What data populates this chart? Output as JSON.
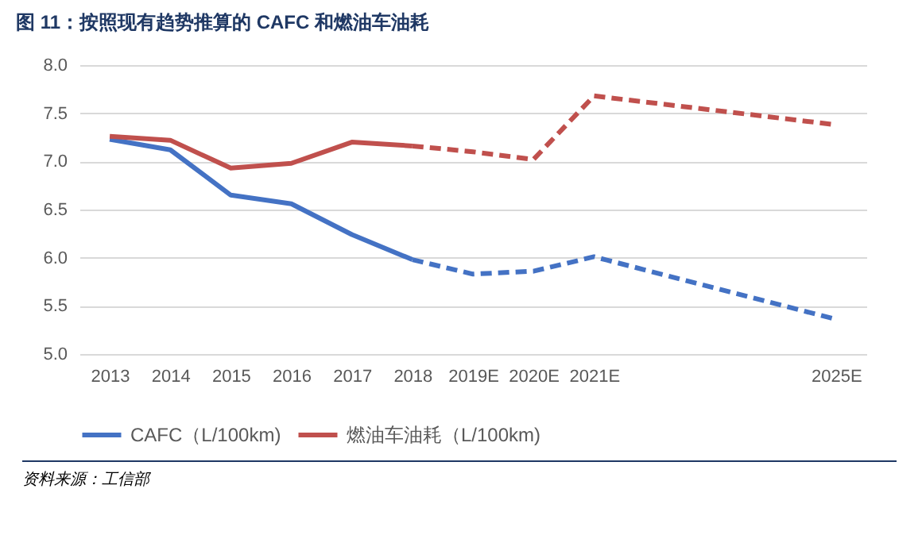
{
  "chart_data": {
    "type": "line",
    "title": "图 11：按照现有趋势推算的 CAFC 和燃油车油耗",
    "series": [
      {
        "name": "CAFC（L/100km)",
        "color": "#4472c4",
        "x": [
          2013,
          2014,
          2015,
          2016,
          2017,
          2018
        ],
        "values": [
          7.23,
          7.12,
          6.65,
          6.56,
          6.24,
          5.98
        ]
      },
      {
        "name": "燃油车油耗（L/100km)",
        "color": "#c0504d",
        "x": [
          2013,
          2014,
          2015,
          2016,
          2017,
          2018
        ],
        "values": [
          7.26,
          7.22,
          6.93,
          6.98,
          7.2,
          7.16
        ]
      },
      {
        "color": "#4472c4",
        "line_style": "dashed",
        "x": [
          2018,
          2019,
          2020,
          2021,
          2025
        ],
        "values": [
          5.98,
          5.83,
          5.86,
          6.01,
          5.36
        ]
      },
      {
        "color": "#c0504d",
        "line_style": "dashed",
        "x": [
          2018,
          2019,
          2020,
          2021,
          2025
        ],
        "values": [
          7.16,
          7.1,
          7.02,
          7.68,
          7.38
        ]
      }
    ],
    "xlim": [
      2012.5,
      2025.5
    ],
    "xticks": [
      2013,
      2014,
      2015,
      2016,
      2017,
      2018,
      {
        "value": 2019,
        "label": "2019E"
      },
      {
        "value": 2020,
        "label": "2020E"
      },
      {
        "value": 2021,
        "label": "2021E"
      },
      {
        "value": 2025,
        "label": "2025E"
      }
    ],
    "ylim": [
      5,
      8
    ],
    "yticks": [
      {
        "value": 5,
        "label": "5.0"
      },
      5.5,
      {
        "value": 6,
        "label": "6.0"
      },
      6.5,
      {
        "value": 7,
        "label": "7.0"
      },
      7.5,
      {
        "value": 8,
        "label": "8.0"
      }
    ],
    "grid": "y",
    "legend": "bottom",
    "line_style": "solid",
    "annotations": [
      "资料来源：工信部"
    ]
  }
}
